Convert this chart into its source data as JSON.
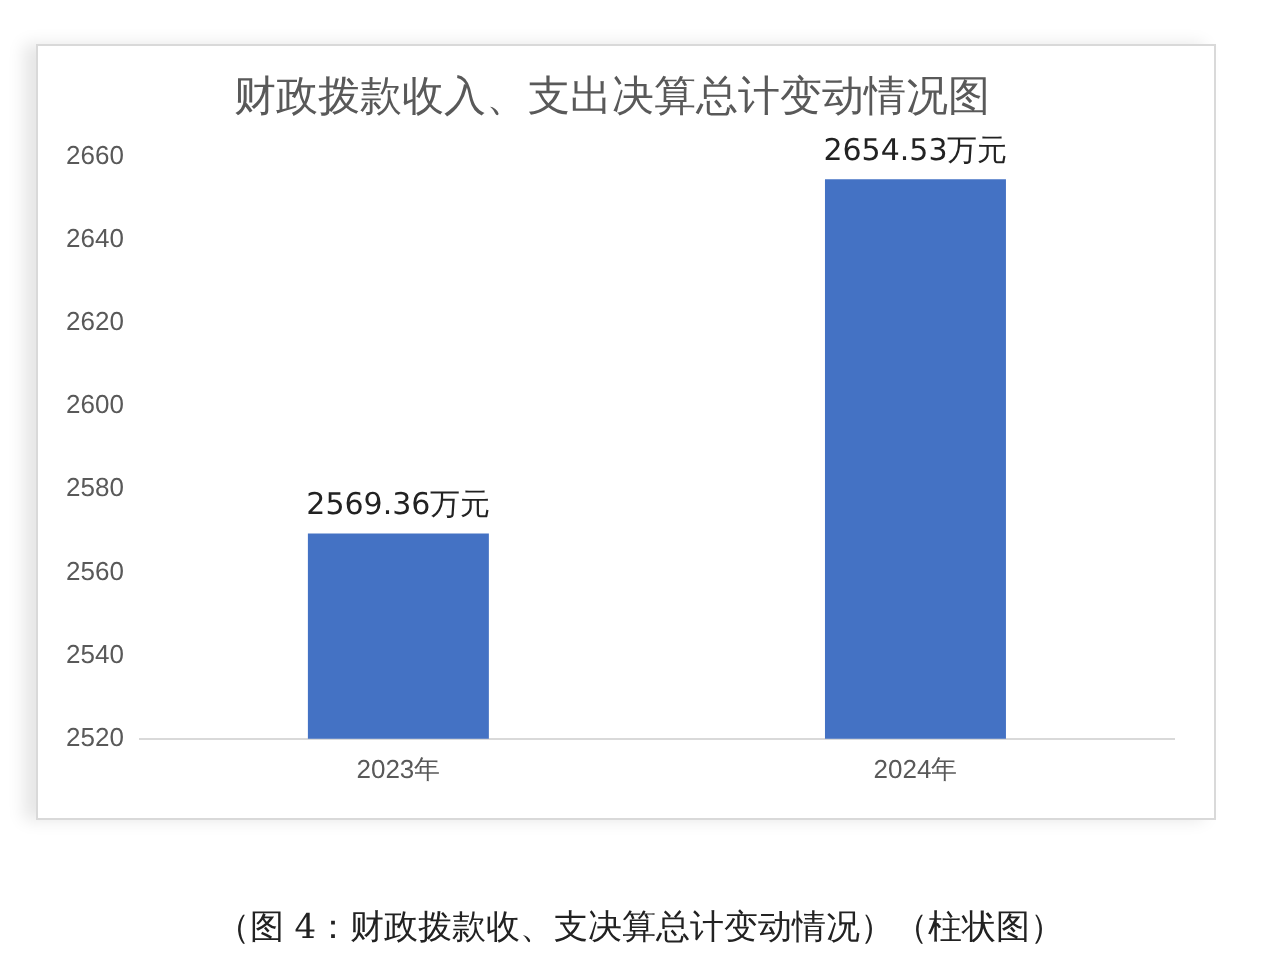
{
  "chart_data": {
    "type": "bar",
    "title": "财政拨款收入、支出决算总计变动情况图",
    "categories": [
      "2023年",
      "2024年"
    ],
    "values": [
      2569.36,
      2654.53
    ],
    "value_labels": [
      "2569.36万元",
      "2654.53万元"
    ],
    "color": "#4472c4",
    "ylim": [
      2520,
      2660
    ],
    "yticks": [
      2520,
      2540,
      2560,
      2580,
      2600,
      2620,
      2640,
      2660
    ],
    "grid": false,
    "legend": false,
    "annotations": [
      "（图 4：财政拨款收、支决算总计变动情况）（柱状图）"
    ]
  }
}
